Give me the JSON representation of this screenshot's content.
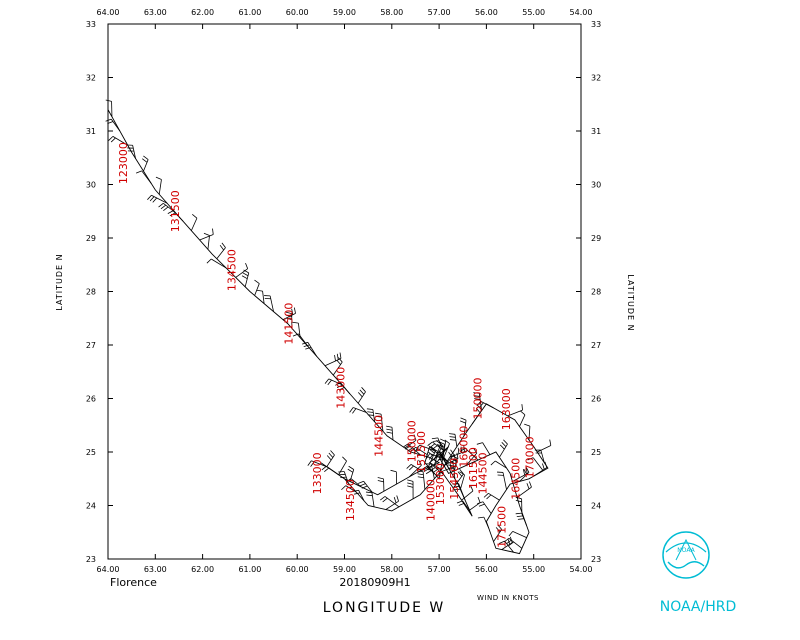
{
  "map": {
    "lon_range": [
      -64,
      -54
    ],
    "lat_range": [
      23,
      33
    ],
    "lon_ticks": [
      "64.00",
      "63.00",
      "62.00",
      "61.00",
      "60.00",
      "59.00",
      "58.00",
      "57.00",
      "56.00",
      "55.00",
      "54.00"
    ],
    "lat_ticks": [
      "23",
      "24",
      "25",
      "26",
      "27",
      "28",
      "29",
      "30",
      "31",
      "32",
      "33"
    ],
    "lat_label_left": "LATITUDE   N",
    "lat_label_right": "LATITUDE   N",
    "lon_label": "LONGITUDE   W",
    "storm_name": "Florence",
    "flight_id": "20180909H1",
    "wind_units": "WIND IN KNOTS",
    "agency": "NOAA/HRD",
    "logo_text": "NOAA",
    "track_color": "#000000",
    "time_label_color": "#d00000",
    "agency_color": "#00bcd4"
  },
  "chart_data": {
    "type": "flight_track_map",
    "track": [
      [
        -64.0,
        31.4
      ],
      [
        -63.5,
        30.6
      ],
      [
        -63.0,
        29.9
      ],
      [
        -62.5,
        29.4
      ],
      [
        -61.8,
        28.7
      ],
      [
        -61.0,
        28.0
      ],
      [
        -60.2,
        27.4
      ],
      [
        -59.5,
        26.7
      ],
      [
        -58.8,
        26.0
      ],
      [
        -58.1,
        25.3
      ],
      [
        -57.6,
        25.0
      ],
      [
        -57.2,
        24.9
      ],
      [
        -57.0,
        24.8
      ],
      [
        -57.5,
        24.6
      ],
      [
        -58.3,
        24.2
      ],
      [
        -59.0,
        24.5
      ],
      [
        -59.5,
        24.8
      ],
      [
        -59.0,
        24.5
      ],
      [
        -58.5,
        24.0
      ],
      [
        -58.0,
        23.9
      ],
      [
        -57.4,
        24.2
      ],
      [
        -57.0,
        24.6
      ],
      [
        -56.7,
        25.0
      ],
      [
        -56.4,
        25.4
      ],
      [
        -56.0,
        25.9
      ],
      [
        -55.4,
        25.6
      ],
      [
        -55.0,
        25.1
      ],
      [
        -54.7,
        24.7
      ],
      [
        -55.1,
        24.5
      ],
      [
        -55.5,
        24.4
      ],
      [
        -55.8,
        24.0
      ],
      [
        -56.0,
        23.7
      ],
      [
        -55.8,
        23.2
      ],
      [
        -55.3,
        23.1
      ],
      [
        -55.1,
        23.5
      ],
      [
        -55.3,
        24.0
      ],
      [
        -55.5,
        24.6
      ],
      [
        -55.8,
        25.0
      ],
      [
        -56.3,
        24.8
      ],
      [
        -56.8,
        24.6
      ],
      [
        -57.0,
        24.9
      ],
      [
        -56.8,
        25.1
      ],
      [
        -57.2,
        24.8
      ],
      [
        -57.0,
        24.7
      ],
      [
        -56.6,
        24.2
      ],
      [
        -56.3,
        23.8
      ],
      [
        -56.6,
        24.4
      ],
      [
        -57.0,
        25.0
      ],
      [
        -56.8,
        24.8
      ],
      [
        -57.2,
        25.1
      ],
      [
        -57.3,
        24.8
      ],
      [
        -57.0,
        24.5
      ],
      [
        -56.9,
        25.0
      ]
    ],
    "time_labels": [
      {
        "text": "123000",
        "lon": -63.6,
        "lat": 30.4
      },
      {
        "text": "131500",
        "lon": -62.5,
        "lat": 29.5
      },
      {
        "text": "134500",
        "lon": -61.3,
        "lat": 28.4
      },
      {
        "text": "141500",
        "lon": -60.1,
        "lat": 27.4
      },
      {
        "text": "143000",
        "lon": -59.0,
        "lat": 26.2
      },
      {
        "text": "144500",
        "lon": -58.2,
        "lat": 25.3
      },
      {
        "text": "150000",
        "lon": -57.5,
        "lat": 25.2
      },
      {
        "text": "151500",
        "lon": -57.3,
        "lat": 25.0
      },
      {
        "text": "153000",
        "lon": -56.9,
        "lat": 24.4
      },
      {
        "text": "154500",
        "lon": -56.6,
        "lat": 24.5
      },
      {
        "text": "160000",
        "lon": -56.4,
        "lat": 25.1
      },
      {
        "text": "161500",
        "lon": -56.2,
        "lat": 24.7
      },
      {
        "text": "163000",
        "lon": -55.5,
        "lat": 25.8
      },
      {
        "text": "164500",
        "lon": -55.3,
        "lat": 24.5
      },
      {
        "text": "170000",
        "lon": -55.0,
        "lat": 24.9
      },
      {
        "text": "171500",
        "lon": -55.6,
        "lat": 23.6
      },
      {
        "text": "133000",
        "lon": -59.5,
        "lat": 24.6
      },
      {
        "text": "134500",
        "lon": -58.8,
        "lat": 24.1
      },
      {
        "text": "140000",
        "lon": -57.1,
        "lat": 24.1
      },
      {
        "text": "150000",
        "lon": -56.1,
        "lat": 26.0
      },
      {
        "text": "144500",
        "lon": -56.0,
        "lat": 24.6
      }
    ]
  }
}
